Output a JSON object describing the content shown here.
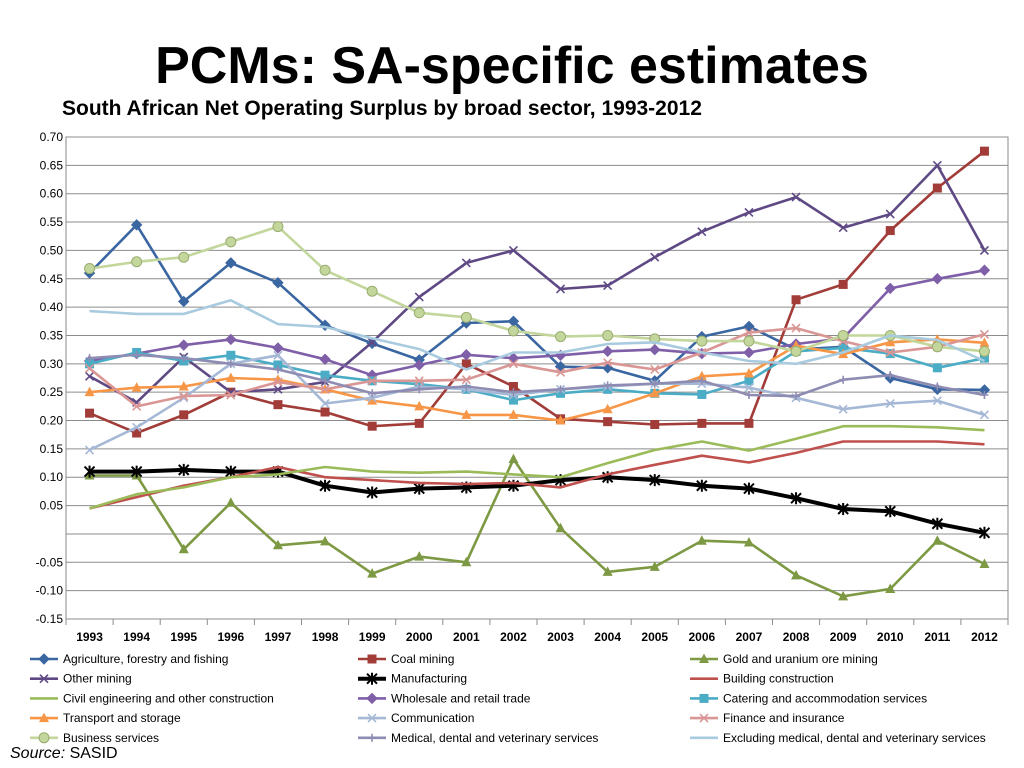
{
  "slide": {
    "title": "PCMs: SA-specific estimates",
    "source_label": "Source:",
    "source_value": " SASID"
  },
  "chart_data": {
    "type": "line",
    "title": "South African Net Operating Surplus by broad sector, 1993-2012",
    "xlabel": "",
    "ylabel": "",
    "ylim": [
      -0.15,
      0.7
    ],
    "grid": true,
    "legend_position": "bottom",
    "y_tick_labels": [
      "0.70",
      "0.65",
      "0.60",
      "0.55",
      "0.50",
      "0.45",
      "0.40",
      "0.35",
      "0.30",
      "0.25",
      "0.20",
      "0.15",
      "0.10",
      "0.05",
      "",
      "-0.05",
      "-0.10",
      "-0.15"
    ],
    "categories": [
      "1993",
      "1994",
      "1995",
      "1996",
      "1997",
      "1998",
      "1999",
      "2000",
      "2001",
      "2002",
      "2003",
      "2004",
      "2005",
      "2006",
      "2007",
      "2008",
      "2009",
      "2010",
      "2011",
      "2012"
    ],
    "series": [
      {
        "name": "Agriculture, forestry and fishing",
        "color": "#3a66a1",
        "marker": "diamond",
        "values": [
          0.46,
          0.545,
          0.41,
          0.478,
          0.443,
          0.368,
          0.336,
          0.307,
          0.372,
          0.375,
          0.295,
          0.293,
          0.27,
          0.348,
          0.366,
          0.325,
          0.33,
          0.275,
          0.255,
          0.254
        ]
      },
      {
        "name": "Coal mining",
        "color": "#a13c39",
        "marker": "square",
        "values": [
          0.213,
          0.178,
          0.21,
          0.25,
          0.228,
          0.215,
          0.19,
          0.195,
          0.3,
          0.26,
          0.203,
          0.198,
          0.193,
          0.195,
          0.195,
          0.413,
          0.44,
          0.535,
          0.61,
          0.675
        ]
      },
      {
        "name": "Gold and uranium ore mining",
        "color": "#7d9943",
        "marker": "triangle",
        "values": [
          0.103,
          0.103,
          -0.027,
          0.055,
          -0.02,
          -0.013,
          -0.07,
          -0.04,
          -0.05,
          0.132,
          0.01,
          -0.067,
          -0.058,
          -0.012,
          -0.015,
          -0.073,
          -0.11,
          -0.097,
          -0.012,
          -0.053
        ]
      },
      {
        "name": "Other mining",
        "color": "#5f4985",
        "marker": "x",
        "values": [
          0.278,
          0.232,
          0.312,
          0.25,
          0.255,
          0.268,
          0.338,
          0.418,
          0.478,
          0.5,
          0.432,
          0.438,
          0.488,
          0.533,
          0.567,
          0.594,
          0.54,
          0.564,
          0.65,
          0.5
        ]
      },
      {
        "name": "Manufacturing",
        "color": "#000000",
        "marker": "star",
        "thick": true,
        "values": [
          0.11,
          0.11,
          0.113,
          0.11,
          0.11,
          0.085,
          0.073,
          0.08,
          0.082,
          0.085,
          0.095,
          0.1,
          0.095,
          0.085,
          0.08,
          0.063,
          0.044,
          0.04,
          0.018,
          0.002
        ]
      },
      {
        "name": "Building construction",
        "color": "#c0504d",
        "marker": "none",
        "values": [
          0.045,
          0.065,
          0.085,
          0.1,
          0.118,
          0.1,
          0.095,
          0.09,
          0.088,
          0.09,
          0.082,
          0.105,
          0.122,
          0.138,
          0.126,
          0.143,
          0.163,
          0.163,
          0.163,
          0.158
        ]
      },
      {
        "name": "Civil engineering and other construction",
        "color": "#9bbb59",
        "marker": "none",
        "values": [
          0.045,
          0.07,
          0.082,
          0.1,
          0.105,
          0.118,
          0.11,
          0.108,
          0.11,
          0.105,
          0.1,
          0.125,
          0.148,
          0.163,
          0.147,
          0.168,
          0.19,
          0.19,
          0.188,
          0.183
        ]
      },
      {
        "name": "Wholesale and retail trade",
        "color": "#7f5fa8",
        "marker": "diamond",
        "values": [
          0.305,
          0.318,
          0.333,
          0.343,
          0.328,
          0.308,
          0.28,
          0.298,
          0.316,
          0.31,
          0.315,
          0.322,
          0.325,
          0.318,
          0.32,
          0.335,
          0.345,
          0.433,
          0.45,
          0.465
        ]
      },
      {
        "name": "Catering and accommodation services",
        "color": "#4bacc6",
        "marker": "square",
        "values": [
          0.3,
          0.32,
          0.305,
          0.315,
          0.298,
          0.28,
          0.27,
          0.264,
          0.255,
          0.236,
          0.248,
          0.255,
          0.248,
          0.246,
          0.27,
          0.322,
          0.328,
          0.318,
          0.293,
          0.31
        ]
      },
      {
        "name": "Transport and storage",
        "color": "#f79646",
        "marker": "triangle",
        "values": [
          0.25,
          0.258,
          0.26,
          0.275,
          0.272,
          0.255,
          0.235,
          0.225,
          0.21,
          0.21,
          0.2,
          0.22,
          0.248,
          0.278,
          0.283,
          0.332,
          0.317,
          0.338,
          0.343,
          0.337
        ]
      },
      {
        "name": "Communication",
        "color": "#a5b8d6",
        "marker": "x",
        "values": [
          0.148,
          0.188,
          0.24,
          0.3,
          0.315,
          0.23,
          0.24,
          0.26,
          0.255,
          0.245,
          0.255,
          0.26,
          0.265,
          0.265,
          0.258,
          0.24,
          0.22,
          0.23,
          0.235,
          0.21
        ]
      },
      {
        "name": "Finance and insurance",
        "color": "#d99694",
        "marker": "x",
        "values": [
          0.292,
          0.225,
          0.243,
          0.245,
          0.268,
          0.255,
          0.27,
          0.27,
          0.272,
          0.3,
          0.285,
          0.302,
          0.29,
          0.32,
          0.355,
          0.363,
          0.34,
          0.32,
          0.33,
          0.352
        ]
      },
      {
        "name": "Business services",
        "color": "#c3d69b",
        "marker": "circle",
        "values": [
          0.468,
          0.48,
          0.488,
          0.515,
          0.542,
          0.465,
          0.428,
          0.39,
          0.382,
          0.358,
          0.348,
          0.35,
          0.344,
          0.34,
          0.34,
          0.322,
          0.35,
          0.35,
          0.33,
          0.322
        ]
      },
      {
        "name": "Medical, dental and veterinary services",
        "color": "#8e8cb3",
        "marker": "plus",
        "values": [
          0.31,
          0.316,
          0.31,
          0.3,
          0.29,
          0.27,
          0.248,
          0.255,
          0.26,
          0.25,
          0.255,
          0.262,
          0.265,
          0.27,
          0.245,
          0.243,
          0.272,
          0.28,
          0.26,
          0.245
        ]
      },
      {
        "name": "Excluding medical, dental and veterinary services",
        "color": "#a9cbe0",
        "marker": "none",
        "values": [
          0.393,
          0.388,
          0.388,
          0.412,
          0.37,
          0.365,
          0.345,
          0.326,
          0.29,
          0.32,
          0.32,
          0.335,
          0.338,
          0.32,
          0.305,
          0.3,
          0.32,
          0.35,
          0.342,
          0.305
        ]
      }
    ]
  }
}
